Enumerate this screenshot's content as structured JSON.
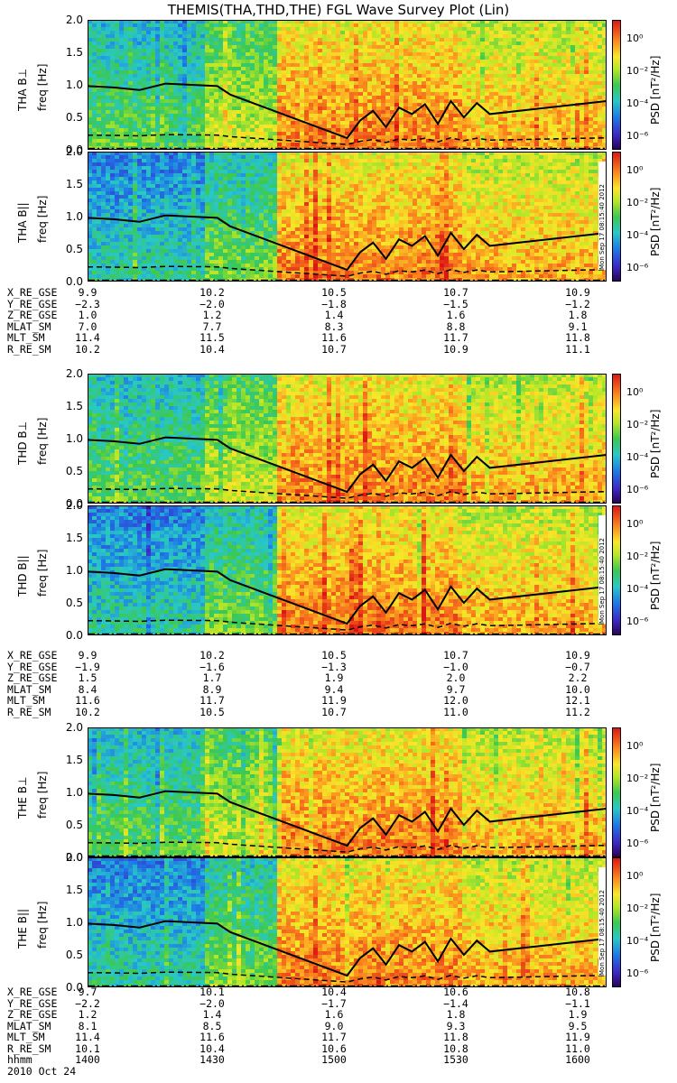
{
  "title": "THEMIS(THA,THD,THE) FGL Wave Survey Plot (Lin)",
  "date_label": "2010 Oct 24",
  "stamp": "Mon Sep 17 08:15:40 2012",
  "colorbar": {
    "label": "PSD [nT²/Hz]",
    "ticks": [
      "10⁰",
      "10⁻²",
      "10⁻⁴",
      "10⁻⁶"
    ],
    "scale": "log"
  },
  "chart_data": {
    "type": "heatmap",
    "x_time_ticks_hhmm": [
      "1400",
      "1430",
      "1500",
      "1530",
      "1600"
    ],
    "ylim": [
      0,
      2.0
    ],
    "y_ticks": [
      "2.0",
      "1.5",
      "1.0",
      "0.5",
      "0.0"
    ],
    "ylabel": "freq [Hz]",
    "colormap": "rainbow (purple-blue-green-yellow-red)",
    "panels": [
      {
        "probe": "THA",
        "label": "THA B⊥"
      },
      {
        "probe": "THA",
        "label": "THA B||"
      },
      {
        "probe": "THD",
        "label": "THD B⊥"
      },
      {
        "probe": "THD",
        "label": "THD B||"
      },
      {
        "probe": "THE",
        "label": "THE B⊥"
      },
      {
        "probe": "THE",
        "label": "THE B||"
      }
    ],
    "overlay_lines": {
      "solid_fce_x": [
        1400,
        1410,
        1420,
        1430,
        1440,
        1450,
        1455,
        1500,
        1505,
        1510,
        1515,
        1520,
        1525,
        1530,
        1535,
        1540,
        1545,
        1550,
        1555,
        1600
      ],
      "solid_fce_y": [
        0.98,
        0.96,
        0.92,
        1.02,
        1.0,
        0.98,
        0.85,
        0.18,
        0.45,
        0.6,
        0.35,
        0.65,
        0.55,
        0.7,
        0.4,
        0.75,
        0.5,
        0.72,
        0.55,
        0.75
      ]
    }
  },
  "orbit_blocks": [
    {
      "rows": [
        {
          "label": "X_RE_GSE",
          "values": [
            "9.9",
            "10.2",
            "10.5",
            "10.7",
            "10.9"
          ]
        },
        {
          "label": "Y_RE_GSE",
          "values": [
            "−2.3",
            "−2.0",
            "−1.8",
            "−1.5",
            "−1.2"
          ]
        },
        {
          "label": "Z_RE_GSE",
          "values": [
            "1.0",
            "1.2",
            "1.4",
            "1.6",
            "1.8"
          ]
        },
        {
          "label": "MLAT_SM",
          "values": [
            "7.0",
            "7.7",
            "8.3",
            "8.8",
            "9.1"
          ]
        },
        {
          "label": "MLT_SM",
          "values": [
            "11.4",
            "11.5",
            "11.6",
            "11.7",
            "11.8"
          ]
        },
        {
          "label": "R_RE_SM",
          "values": [
            "10.2",
            "10.4",
            "10.7",
            "10.9",
            "11.1"
          ]
        }
      ]
    },
    {
      "rows": [
        {
          "label": "X_RE_GSE",
          "values": [
            "9.9",
            "10.2",
            "10.5",
            "10.7",
            "10.9"
          ]
        },
        {
          "label": "Y_RE_GSE",
          "values": [
            "−1.9",
            "−1.6",
            "−1.3",
            "−1.0",
            "−0.7"
          ]
        },
        {
          "label": "Z_RE_GSE",
          "values": [
            "1.5",
            "1.7",
            "1.9",
            "2.0",
            "2.2"
          ]
        },
        {
          "label": "MLAT_SM",
          "values": [
            "8.4",
            "8.9",
            "9.4",
            "9.7",
            "10.0"
          ]
        },
        {
          "label": "MLT_SM",
          "values": [
            "11.6",
            "11.7",
            "11.9",
            "12.0",
            "12.1"
          ]
        },
        {
          "label": "R_RE_SM",
          "values": [
            "10.2",
            "10.5",
            "10.7",
            "11.0",
            "11.2"
          ]
        }
      ]
    },
    {
      "rows": [
        {
          "label": "X_RE_GSE",
          "values": [
            "9.7",
            "10.1",
            "10.4",
            "10.6",
            "10.8"
          ]
        },
        {
          "label": "Y_RE_GSE",
          "values": [
            "−2.2",
            "−2.0",
            "−1.7",
            "−1.4",
            "−1.1"
          ]
        },
        {
          "label": "Z_RE_GSE",
          "values": [
            "1.2",
            "1.4",
            "1.6",
            "1.8",
            "1.9"
          ]
        },
        {
          "label": "MLAT_SM",
          "values": [
            "8.1",
            "8.5",
            "9.0",
            "9.3",
            "9.5"
          ]
        },
        {
          "label": "MLT_SM",
          "values": [
            "11.4",
            "11.6",
            "11.7",
            "11.8",
            "11.9"
          ]
        },
        {
          "label": "R_RE_SM",
          "values": [
            "10.1",
            "10.4",
            "10.6",
            "10.8",
            "11.0"
          ]
        },
        {
          "label": "hhmm",
          "values": [
            "1400",
            "1430",
            "1500",
            "1530",
            "1600"
          ]
        }
      ]
    }
  ]
}
